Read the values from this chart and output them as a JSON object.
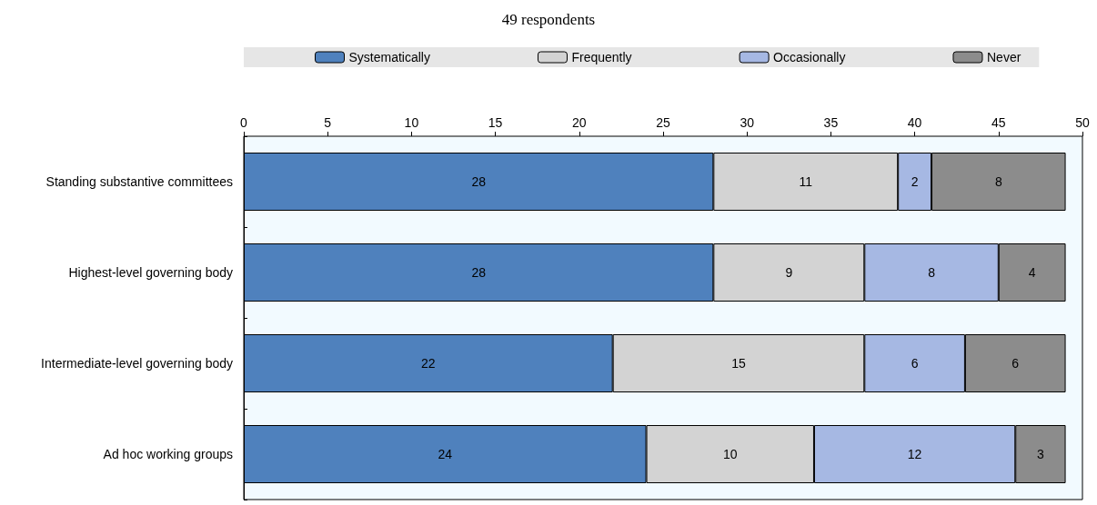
{
  "chart_data": {
    "type": "bar",
    "orientation": "horizontal",
    "stacked": true,
    "title": "49 respondents",
    "categories": [
      "Standing substantive committees",
      "Highest-level governing body",
      "Intermediate-level governing body",
      "Ad hoc working groups"
    ],
    "series": [
      {
        "name": "Systematically",
        "color": "#4f81bd",
        "values": [
          28,
          28,
          22,
          24
        ]
      },
      {
        "name": "Frequently",
        "color": "#d3d3d3",
        "values": [
          11,
          9,
          15,
          10
        ]
      },
      {
        "name": "Occasionally",
        "color": "#a6b8e3",
        "values": [
          2,
          8,
          6,
          12
        ]
      },
      {
        "name": "Never",
        "color": "#8c8c8c",
        "values": [
          8,
          4,
          6,
          3
        ]
      }
    ],
    "xlim": [
      0,
      50
    ],
    "xticks": [
      0,
      5,
      10,
      15,
      20,
      25,
      30,
      35,
      40,
      45,
      50
    ],
    "data_labels": true,
    "grid": false,
    "legend": "top"
  }
}
